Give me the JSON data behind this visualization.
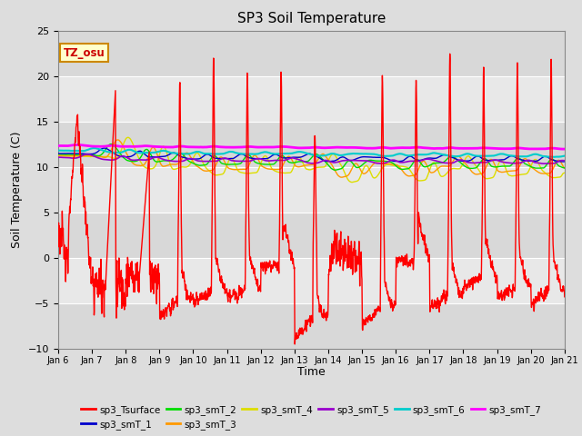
{
  "title": "SP3 Soil Temperature",
  "ylabel": "Soil Temperature (C)",
  "xlabel": "Time",
  "ylim": [
    -10,
    25
  ],
  "yticks": [
    -10,
    -5,
    0,
    5,
    10,
    15,
    20,
    25
  ],
  "xtick_labels": [
    "Jan 6",
    "Jan 7",
    "Jan 8",
    "Jan 9",
    "Jan 10",
    "Jan 11",
    "Jan 12",
    "Jan 13",
    "Jan 14",
    "Jan 15",
    "Jan 16",
    "Jan 17",
    "Jan 18",
    "Jan 19",
    "Jan 20",
    "Jan 21"
  ],
  "annotation_text": "TZ_osu",
  "series_colors": {
    "sp3_Tsurface": "#ff0000",
    "sp3_smT_1": "#0000cc",
    "sp3_smT_2": "#00dd00",
    "sp3_smT_3": "#ff9900",
    "sp3_smT_4": "#dddd00",
    "sp3_smT_5": "#9900cc",
    "sp3_smT_6": "#00cccc",
    "sp3_smT_7": "#ff00ff"
  },
  "bg_color": "#dddddd",
  "plot_bg_color": "#e8e8e8",
  "grid_color": "#ffffff",
  "title_fontsize": 11,
  "axis_fontsize": 9,
  "tick_fontsize": 8
}
